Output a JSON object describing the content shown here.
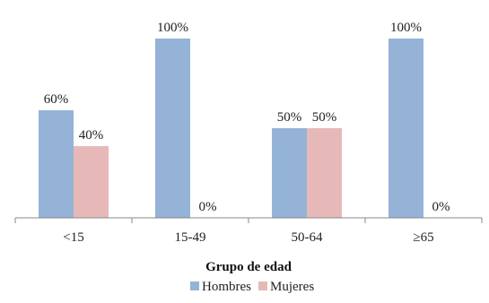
{
  "chart_data": {
    "type": "bar",
    "categories": [
      "<15",
      "15-49",
      "50-64",
      "≥65"
    ],
    "series": [
      {
        "name": "Hombres",
        "values": [
          60,
          100,
          50,
          100
        ],
        "labels": [
          "60%",
          "100%",
          "50%",
          "100%"
        ],
        "color": "#95B3D7"
      },
      {
        "name": "Mujeres",
        "values": [
          40,
          0,
          50,
          0
        ],
        "labels": [
          "40%",
          "0%",
          "50%",
          "0%"
        ],
        "color": "#E6B9B8"
      }
    ],
    "title": "",
    "xlabel": "Grupo de edad",
    "ylabel": "",
    "ylim": [
      0,
      100
    ],
    "grid": false,
    "legend_position": "bottom"
  }
}
